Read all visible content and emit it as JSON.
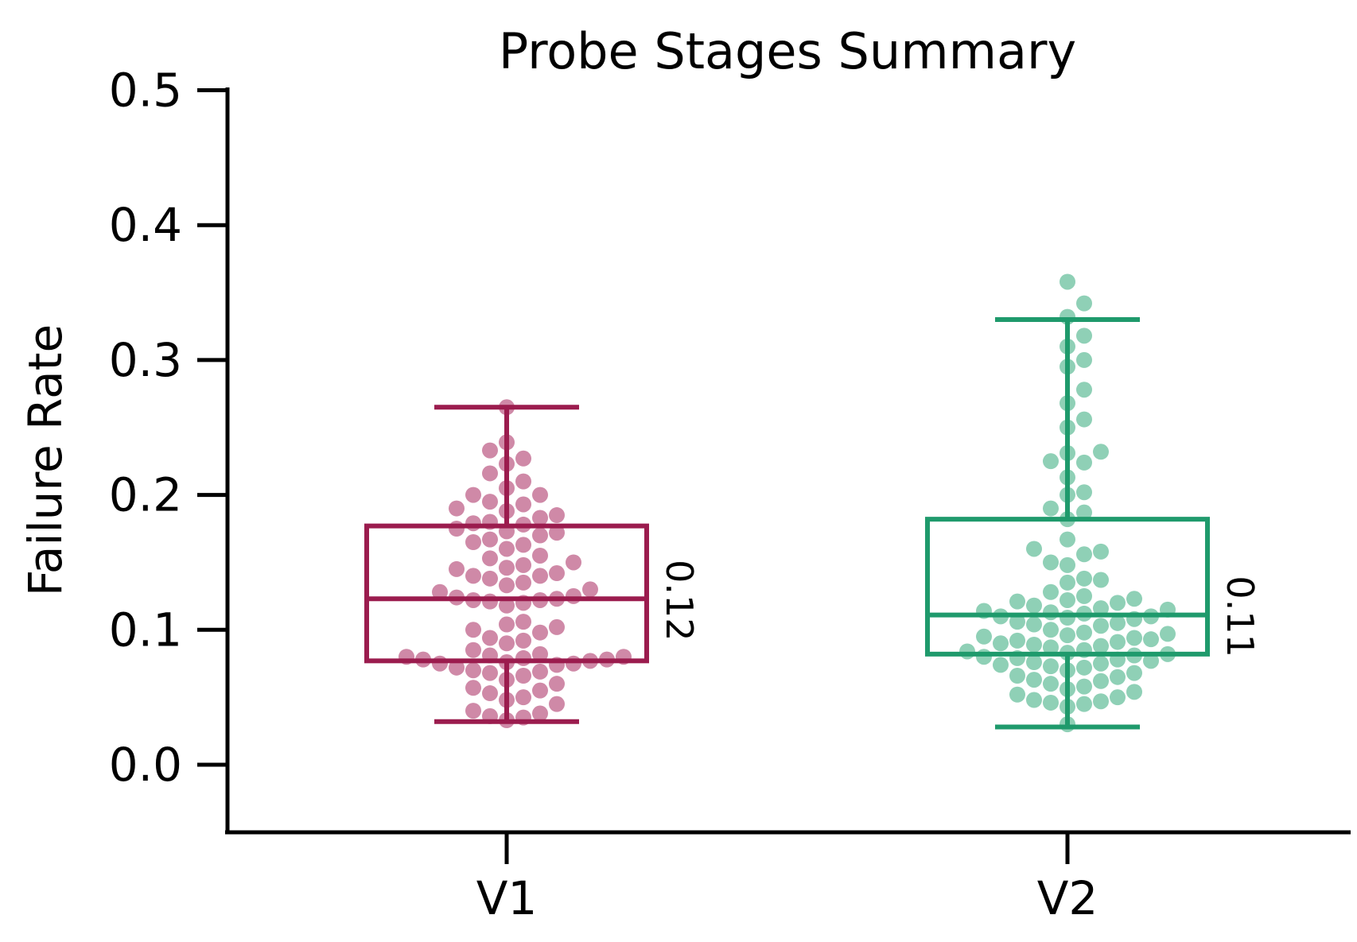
{
  "chart_data": {
    "type": "box",
    "title": "Probe Stages Summary",
    "xlabel": "",
    "ylabel": "Failure Rate",
    "ylim": [
      -0.05,
      0.5
    ],
    "yticks": [
      0.0,
      0.1,
      0.2,
      0.3,
      0.4,
      0.5
    ],
    "ytick_labels": [
      "0.0",
      "0.1",
      "0.2",
      "0.3",
      "0.4",
      "0.5"
    ],
    "categories": [
      "V1",
      "V2"
    ],
    "grid": false,
    "boxes": [
      {
        "category": "V1",
        "color": "#9b1c4e",
        "point_color": "#cf89a7",
        "whisker_low": 0.032,
        "q1": 0.077,
        "median": 0.123,
        "q3": 0.177,
        "whisker_high": 0.265,
        "median_label": "0.12",
        "points": [
          0.265,
          0.239,
          0.233,
          0.227,
          0.223,
          0.216,
          0.21,
          0.205,
          0.2,
          0.2,
          0.195,
          0.193,
          0.19,
          0.188,
          0.185,
          0.183,
          0.18,
          0.179,
          0.178,
          0.175,
          0.173,
          0.172,
          0.17,
          0.167,
          0.165,
          0.163,
          0.16,
          0.155,
          0.153,
          0.15,
          0.148,
          0.146,
          0.145,
          0.142,
          0.14,
          0.14,
          0.138,
          0.135,
          0.133,
          0.13,
          0.128,
          0.125,
          0.124,
          0.123,
          0.122,
          0.122,
          0.121,
          0.12,
          0.118,
          0.106,
          0.104,
          0.102,
          0.1,
          0.098,
          0.094,
          0.092,
          0.09,
          0.085,
          0.082,
          0.081,
          0.08,
          0.08,
          0.079,
          0.078,
          0.078,
          0.077,
          0.076,
          0.075,
          0.075,
          0.074,
          0.072,
          0.07,
          0.069,
          0.068,
          0.066,
          0.063,
          0.06,
          0.057,
          0.055,
          0.053,
          0.05,
          0.048,
          0.045,
          0.04,
          0.038,
          0.036,
          0.035,
          0.033
        ]
      },
      {
        "category": "V2",
        "color": "#1f9a6c",
        "point_color": "#8fd0b6",
        "whisker_low": 0.028,
        "q1": 0.082,
        "median": 0.111,
        "q3": 0.182,
        "whisker_high": 0.33,
        "median_label": "0.11",
        "points": [
          0.358,
          0.342,
          0.332,
          0.318,
          0.31,
          0.3,
          0.295,
          0.278,
          0.268,
          0.256,
          0.25,
          0.232,
          0.231,
          0.225,
          0.224,
          0.213,
          0.202,
          0.2,
          0.19,
          0.187,
          0.182,
          0.167,
          0.16,
          0.158,
          0.156,
          0.15,
          0.148,
          0.138,
          0.137,
          0.135,
          0.128,
          0.125,
          0.123,
          0.122,
          0.121,
          0.12,
          0.118,
          0.116,
          0.115,
          0.114,
          0.113,
          0.112,
          0.11,
          0.11,
          0.109,
          0.108,
          0.106,
          0.105,
          0.104,
          0.103,
          0.1,
          0.098,
          0.097,
          0.096,
          0.095,
          0.094,
          0.093,
          0.092,
          0.091,
          0.09,
          0.089,
          0.088,
          0.087,
          0.085,
          0.084,
          0.083,
          0.082,
          0.081,
          0.08,
          0.079,
          0.078,
          0.077,
          0.076,
          0.075,
          0.074,
          0.073,
          0.072,
          0.07,
          0.068,
          0.066,
          0.065,
          0.063,
          0.062,
          0.06,
          0.058,
          0.056,
          0.054,
          0.052,
          0.05,
          0.048,
          0.047,
          0.046,
          0.045,
          0.043,
          0.03
        ]
      }
    ]
  }
}
